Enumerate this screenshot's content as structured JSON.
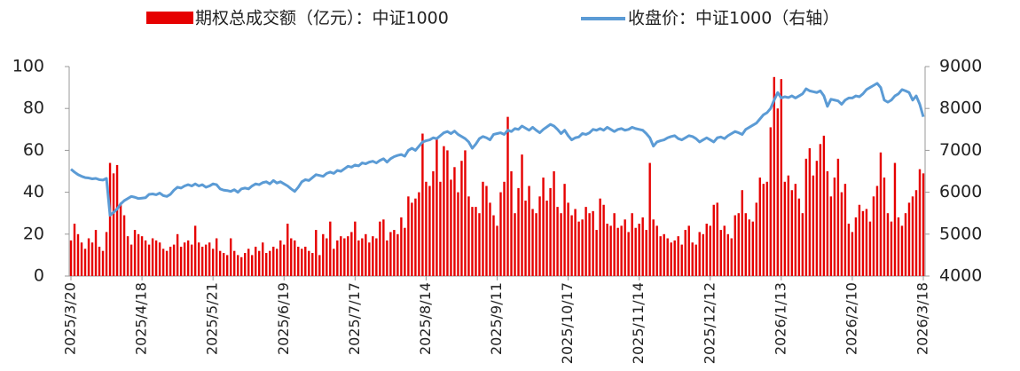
{
  "chart_data": {
    "type": "bar+line",
    "categories": [
      "2025/3/20",
      null,
      null,
      null,
      null,
      null,
      null,
      null,
      null,
      null,
      null,
      null,
      null,
      null,
      null,
      null,
      null,
      null,
      null,
      null,
      "2025/4/18",
      null,
      null,
      null,
      null,
      null,
      null,
      null,
      null,
      null,
      null,
      null,
      null,
      null,
      null,
      null,
      null,
      null,
      null,
      null,
      "2025/5/21",
      null,
      null,
      null,
      null,
      null,
      null,
      null,
      null,
      null,
      null,
      null,
      null,
      null,
      null,
      null,
      null,
      null,
      null,
      null,
      "2025/6/19",
      null,
      null,
      null,
      null,
      null,
      null,
      null,
      null,
      null,
      null,
      null,
      null,
      null,
      null,
      null,
      null,
      null,
      null,
      null,
      "2025/7/17",
      null,
      null,
      null,
      null,
      null,
      null,
      null,
      null,
      null,
      null,
      null,
      null,
      null,
      null,
      null,
      null,
      null,
      null,
      null,
      "2025/8/14",
      null,
      null,
      null,
      null,
      null,
      null,
      null,
      null,
      null,
      null,
      null,
      null,
      null,
      null,
      null,
      null,
      null,
      null,
      null,
      "2025/9/11",
      null,
      null,
      null,
      null,
      null,
      null,
      null,
      null,
      null,
      null,
      null,
      null,
      null,
      null,
      null,
      null,
      null,
      null,
      null,
      "2025/10/17",
      null,
      null,
      null,
      null,
      null,
      null,
      null,
      null,
      null,
      null,
      null,
      null,
      null,
      null,
      null,
      null,
      null,
      null,
      null,
      "2025/11/14",
      null,
      null,
      null,
      null,
      null,
      null,
      null,
      null,
      null,
      null,
      null,
      null,
      null,
      null,
      null,
      null,
      null,
      null,
      null,
      "2025/12/12",
      null,
      null,
      null,
      null,
      null,
      null,
      null,
      null,
      null,
      null,
      null,
      null,
      null,
      null,
      null,
      null,
      null,
      null,
      null,
      "2026/1/13",
      null,
      null,
      null,
      null,
      null,
      null,
      null,
      null,
      null,
      null,
      null,
      null,
      null,
      null,
      null,
      null,
      null,
      null,
      null,
      "2026/2/10",
      null,
      null,
      null,
      null,
      null,
      null,
      null,
      null,
      null,
      null,
      null,
      null,
      null,
      null,
      null,
      null,
      null,
      null,
      null,
      "2026/3/18"
    ],
    "series": [
      {
        "name": "期权总成交额（亿元）：中证1000",
        "type": "bar",
        "color": "#e60000",
        "values": [
          17,
          25,
          20,
          16,
          13,
          18,
          16,
          22,
          14,
          12,
          21,
          54,
          49,
          53,
          35,
          29,
          19,
          15,
          22,
          20,
          19,
          17,
          15,
          18,
          17,
          16,
          13,
          12,
          14,
          15,
          20,
          14,
          16,
          17,
          15,
          24,
          16,
          14,
          15,
          16,
          13,
          18,
          12,
          11,
          10,
          18,
          12,
          10,
          9,
          11,
          13,
          10,
          14,
          12,
          16,
          11,
          12,
          14,
          13,
          17,
          15,
          25,
          18,
          17,
          14,
          13,
          14,
          12,
          11,
          22,
          10,
          20,
          18,
          26,
          13,
          17,
          19,
          18,
          19,
          21,
          26,
          17,
          18,
          20,
          16,
          19,
          18,
          26,
          27,
          17,
          21,
          22,
          20,
          28,
          23,
          38,
          35,
          37,
          40,
          68,
          45,
          43,
          50,
          66,
          45,
          62,
          60,
          46,
          52,
          40,
          55,
          60,
          38,
          33,
          33,
          30,
          45,
          43,
          35,
          29,
          24,
          40,
          45,
          76,
          50,
          30,
          42,
          58,
          36,
          43,
          32,
          30,
          38,
          47,
          36,
          42,
          50,
          33,
          30,
          44,
          35,
          29,
          32,
          26,
          27,
          33,
          30,
          31,
          22,
          37,
          34,
          25,
          24,
          30,
          23,
          24,
          27,
          21,
          30,
          23,
          25,
          28,
          22,
          54,
          27,
          24,
          19,
          20,
          18,
          16,
          17,
          19,
          15,
          22,
          24,
          16,
          15,
          21,
          20,
          25,
          24,
          34,
          35,
          22,
          24,
          20,
          18,
          29,
          30,
          41,
          30,
          27,
          26,
          35,
          47,
          44,
          45,
          71,
          95,
          80,
          94,
          45,
          48,
          41,
          44,
          37,
          30,
          56,
          61,
          48,
          55,
          63,
          67,
          50,
          38,
          47,
          56,
          40,
          44,
          25,
          21,
          28,
          34,
          31,
          32,
          26,
          38,
          43,
          59,
          47,
          30,
          26,
          54,
          28,
          24,
          30,
          35,
          38,
          41,
          51,
          49
        ]
      },
      {
        "name": "收盘价：中证1000（右轴）",
        "type": "line",
        "axis": "y2",
        "color": "#5b9bd5",
        "values": [
          6550,
          6480,
          6420,
          6380,
          6350,
          6340,
          6320,
          6330,
          6300,
          6290,
          6330,
          5450,
          5520,
          5600,
          5720,
          5800,
          5850,
          5900,
          5880,
          5850,
          5860,
          5870,
          5950,
          5960,
          5940,
          5980,
          5920,
          5900,
          5950,
          6050,
          6120,
          6100,
          6150,
          6180,
          6150,
          6200,
          6150,
          6180,
          6120,
          6150,
          6200,
          6180,
          6080,
          6050,
          6040,
          6020,
          6060,
          6000,
          6080,
          6100,
          6080,
          6150,
          6200,
          6180,
          6230,
          6250,
          6200,
          6280,
          6220,
          6250,
          6200,
          6150,
          6080,
          6020,
          6120,
          6250,
          6300,
          6280,
          6350,
          6420,
          6400,
          6380,
          6450,
          6480,
          6450,
          6520,
          6500,
          6560,
          6620,
          6600,
          6650,
          6630,
          6700,
          6680,
          6720,
          6740,
          6700,
          6760,
          6800,
          6720,
          6800,
          6850,
          6880,
          6900,
          6860,
          7000,
          7050,
          7000,
          7100,
          7200,
          7230,
          7250,
          7300,
          7280,
          7350,
          7420,
          7450,
          7400,
          7460,
          7380,
          7330,
          7280,
          7200,
          7050,
          7150,
          7280,
          7330,
          7300,
          7250,
          7380,
          7400,
          7420,
          7380,
          7480,
          7450,
          7520,
          7500,
          7580,
          7530,
          7480,
          7550,
          7480,
          7420,
          7500,
          7560,
          7620,
          7580,
          7500,
          7400,
          7480,
          7350,
          7250,
          7300,
          7320,
          7400,
          7380,
          7420,
          7500,
          7480,
          7520,
          7480,
          7550,
          7500,
          7450,
          7500,
          7520,
          7480,
          7500,
          7550,
          7520,
          7500,
          7480,
          7400,
          7300,
          7100,
          7200,
          7230,
          7250,
          7300,
          7330,
          7350,
          7280,
          7250,
          7300,
          7350,
          7330,
          7280,
          7200,
          7250,
          7300,
          7250,
          7200,
          7300,
          7320,
          7280,
          7350,
          7400,
          7450,
          7420,
          7380,
          7500,
          7550,
          7600,
          7650,
          7750,
          7850,
          7900,
          8000,
          8200,
          8380,
          8250,
          8280,
          8260,
          8300,
          8250,
          8300,
          8350,
          8470,
          8420,
          8400,
          8380,
          8420,
          8300,
          8050,
          8220,
          8200,
          8180,
          8100,
          8200,
          8250,
          8250,
          8300,
          8280,
          8350,
          8450,
          8500,
          8550,
          8600,
          8500,
          8200,
          8150,
          8200,
          8300,
          8350,
          8450,
          8420,
          8380,
          8200,
          8300,
          8100,
          7800
        ]
      }
    ],
    "ylim": [
      0,
      100
    ],
    "yticks": [
      0,
      20,
      40,
      60,
      80,
      100
    ],
    "y2lim": [
      4000,
      9000
    ],
    "y2ticks": [
      4000,
      5000,
      6000,
      7000,
      8000,
      9000
    ],
    "legend": "top"
  }
}
